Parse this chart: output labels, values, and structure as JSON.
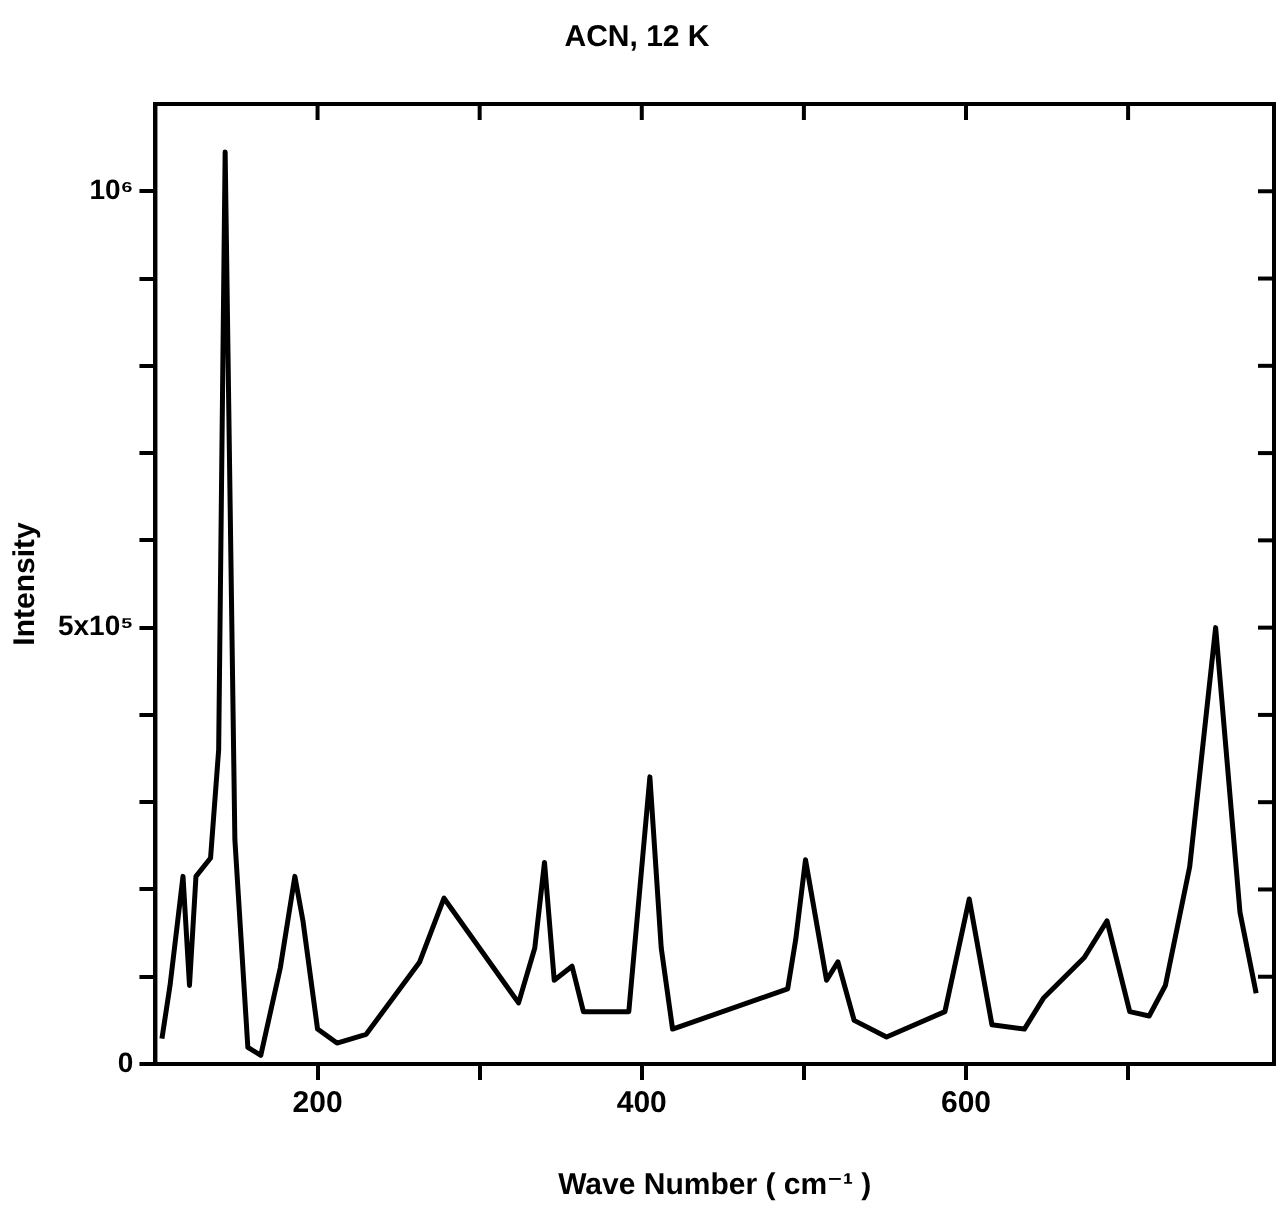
{
  "chart_data": {
    "type": "line",
    "title": "ACN, 12 K",
    "xlabel": "Wave Number ( cm⁻¹ )",
    "ylabel": "Intensity",
    "xlim": [
      100,
      790
    ],
    "xticks": [
      {
        "value": 200,
        "label": "200"
      },
      {
        "value": 300,
        "label": null
      },
      {
        "value": 400,
        "label": "400"
      },
      {
        "value": 500,
        "label": null
      },
      {
        "value": 600,
        "label": "600"
      },
      {
        "value": 700,
        "label": null
      }
    ],
    "ylim": [
      0,
      1100000
    ],
    "yticks": [
      0,
      {
        "value": 100000,
        "label": null
      },
      {
        "value": 200000,
        "label": null
      },
      {
        "value": 300000,
        "label": null
      },
      {
        "value": 400000,
        "label": null
      },
      {
        "value": 500000,
        "label": "5x10⁵"
      },
      {
        "value": 600000,
        "label": null
      },
      {
        "value": 700000,
        "label": null
      },
      {
        "value": 800000,
        "label": null
      },
      {
        "value": 900000,
        "label": null
      },
      {
        "value": 1000000,
        "label": "10⁶"
      }
    ],
    "grid": false,
    "legend": false,
    "marker": "none",
    "line_style": "solid",
    "series": [
      {
        "color": "#000000",
        "x": [
          104,
          109,
          117,
          121,
          125,
          134,
          139,
          143,
          149,
          157,
          165,
          177,
          186,
          191,
          200,
          212,
          230,
          263,
          278,
          324,
          334,
          340,
          346,
          357,
          364,
          379,
          392,
          405,
          412,
          419,
          490,
          495,
          501,
          514,
          521,
          531,
          551,
          587,
          602,
          616,
          636,
          648,
          673,
          687,
          701,
          713,
          723,
          738,
          754,
          769,
          779
        ],
        "values": [
          29000,
          90000,
          215000,
          90000,
          215000,
          236000,
          360000,
          1045000,
          257000,
          19000,
          10000,
          110000,
          215000,
          164000,
          40000,
          24000,
          34000,
          117000,
          190000,
          70000,
          133000,
          231000,
          96000,
          112000,
          60000,
          60000,
          60000,
          329000,
          133000,
          40000,
          86000,
          143000,
          234000,
          96000,
          117000,
          50000,
          31000,
          60000,
          189000,
          45000,
          40000,
          76000,
          122000,
          164000,
          60000,
          55000,
          90000,
          226000,
          500000,
          174000,
          81000
        ]
      }
    ]
  }
}
